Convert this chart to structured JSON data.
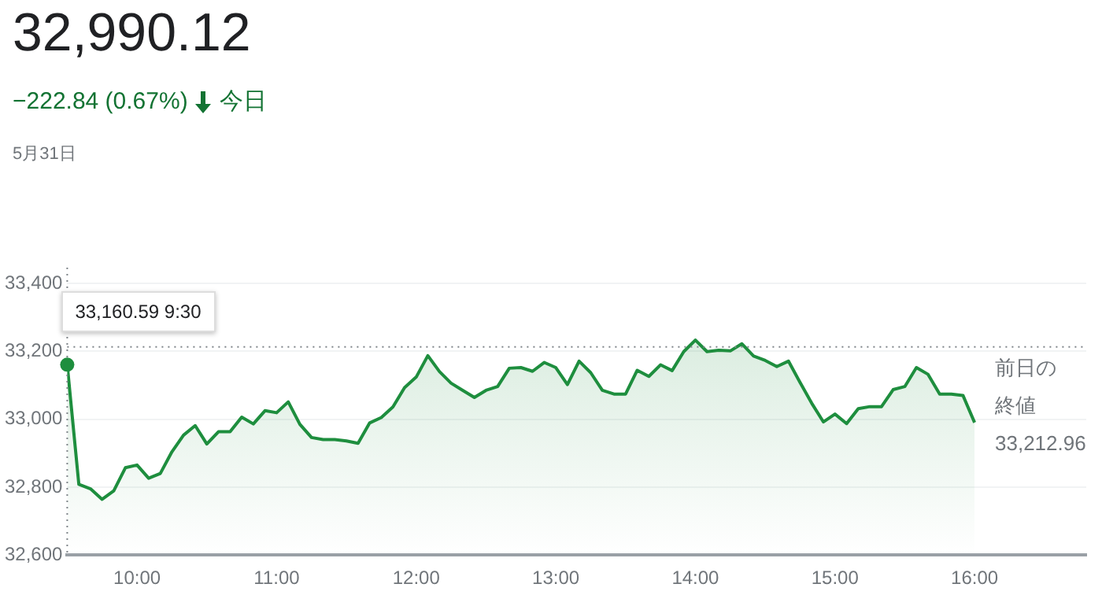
{
  "chart_data": {
    "type": "area",
    "title": "32,990.12",
    "subtitle": "−222.84 (0.67%)",
    "annotations": [
      "今日",
      "5月31日",
      {
        "text": "33,160.59 9:30",
        "x": 9.5,
        "y": 33160.59
      }
    ],
    "x": [
      9.5,
      9.5833,
      9.6667,
      9.75,
      9.8333,
      9.9167,
      10,
      10.0833,
      10.1667,
      10.25,
      10.3333,
      10.4167,
      10.5,
      10.5833,
      10.6667,
      10.75,
      10.8333,
      10.9167,
      11,
      11.0833,
      11.1667,
      11.25,
      11.3333,
      11.4167,
      11.5,
      11.5833,
      11.6667,
      11.75,
      11.8333,
      11.9167,
      12,
      12.0833,
      12.1667,
      12.25,
      12.3333,
      12.4167,
      12.5,
      12.5833,
      12.6667,
      12.75,
      12.8333,
      12.9167,
      13,
      13.0833,
      13.1667,
      13.25,
      13.3333,
      13.4167,
      13.5,
      13.5833,
      13.6667,
      13.75,
      13.8333,
      13.9167,
      14,
      14.0833,
      14.1667,
      14.25,
      14.3333,
      14.4167,
      14.5,
      14.5833,
      14.6667,
      14.75,
      14.8333,
      14.9167,
      15,
      15.0833,
      15.1667,
      15.25,
      15.3333,
      15.4167,
      15.5,
      15.5833,
      15.6667,
      15.75,
      15.8333,
      15.9167,
      16
    ],
    "series": [
      {
        "color": "#1e8e3e",
        "values": [
          33160.59,
          32808,
          32795,
          32764,
          32789,
          32857,
          32865,
          32826,
          32840,
          32904,
          32953,
          32981,
          32927,
          32963,
          32963,
          33006,
          32986,
          33025,
          33019,
          33051,
          32985,
          32946,
          32940,
          32940,
          32936,
          32929,
          32989,
          33005,
          33036,
          33093,
          33124,
          33187,
          33140,
          33106,
          33085,
          33064,
          33085,
          33096,
          33150,
          33152,
          33141,
          33167,
          33152,
          33102,
          33171,
          33137,
          33085,
          33074,
          33074,
          33144,
          33126,
          33160,
          33143,
          33199,
          33233,
          33199,
          33203,
          33201,
          33222,
          33186,
          33173,
          33155,
          33171,
          33108,
          33047,
          32992,
          33015,
          32987,
          33031,
          33037,
          33037,
          33087,
          33096,
          33152,
          33132,
          33074,
          33074,
          33070,
          32990.12
        ]
      }
    ],
    "xlim": [
      9.5,
      16.8
    ],
    "xticks": [
      {
        "value": 10,
        "label": "10:00"
      },
      {
        "value": 11,
        "label": "11:00"
      },
      {
        "value": 12,
        "label": "12:00"
      },
      {
        "value": 13,
        "label": "13:00"
      },
      {
        "value": 14,
        "label": "14:00"
      },
      {
        "value": 15,
        "label": "15:00"
      },
      {
        "value": 16,
        "label": "16:00"
      }
    ],
    "ylim": [
      32600,
      33400
    ],
    "yticks": [
      {
        "value": 32600,
        "label": "32,600"
      },
      {
        "value": 32800,
        "label": "32,800"
      },
      {
        "value": 33000,
        "label": "33,000"
      },
      {
        "value": 33200,
        "label": "33,200"
      },
      {
        "value": 33400,
        "label": "33,400"
      }
    ],
    "ref_lines": [
      {
        "axis": "y",
        "value": 33212.96,
        "label": "前日の終値 33,212.96",
        "line_style": "dotted"
      },
      {
        "axis": "x",
        "value": 9.5,
        "line_style": "dotted"
      }
    ],
    "grid": "y",
    "legend": false,
    "marker": "none",
    "line_style": "solid"
  }
}
